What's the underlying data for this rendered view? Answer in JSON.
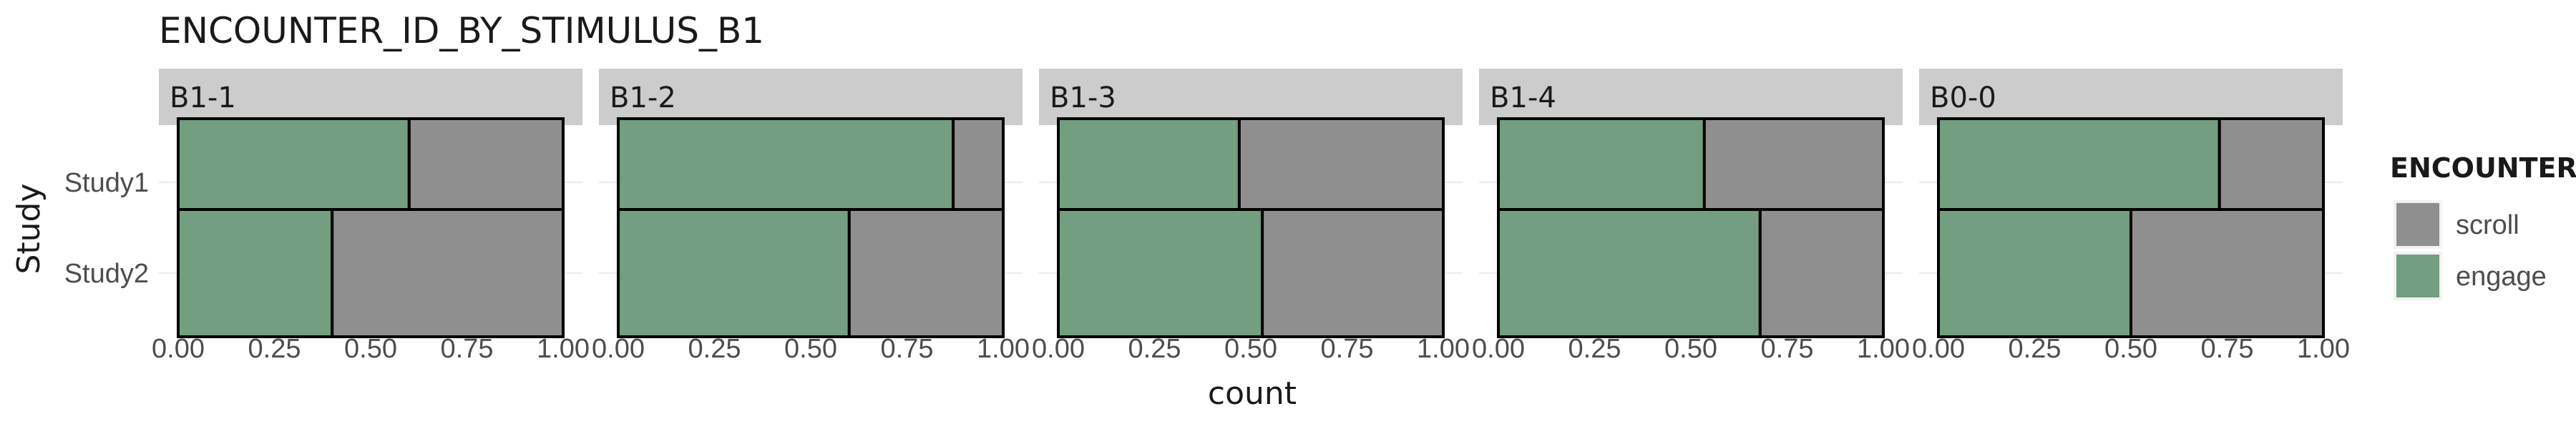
{
  "chart_data": {
    "type": "bar",
    "orientation": "horizontal",
    "stacked": true,
    "title": "ENCOUNTER_ID_BY_STIMULUS_B1",
    "xlabel": "count",
    "ylabel": "Study",
    "xlim": [
      0,
      1
    ],
    "x_ticks": [
      "0.00",
      "0.25",
      "0.50",
      "0.75",
      "1.00"
    ],
    "categories": [
      "Study1",
      "Study2"
    ],
    "legend": {
      "title": "ENCOUNTER",
      "position": "right",
      "entries": [
        {
          "label": "scroll",
          "color": "#8f8f8f"
        },
        {
          "label": "engage",
          "color": "#739e7f"
        }
      ]
    },
    "panels": [
      {
        "label": "B1-1",
        "engage": [
          0.6,
          0.4
        ],
        "scroll": [
          0.4,
          0.6
        ]
      },
      {
        "label": "B1-2",
        "engage": [
          0.87,
          0.6
        ],
        "scroll": [
          0.13,
          0.4
        ]
      },
      {
        "label": "B1-3",
        "engage": [
          0.47,
          0.53
        ],
        "scroll": [
          0.53,
          0.47
        ]
      },
      {
        "label": "B1-4",
        "engage": [
          0.535,
          0.68
        ],
        "scroll": [
          0.465,
          0.32
        ]
      },
      {
        "label": "B0-0",
        "engage": [
          0.73,
          0.5
        ],
        "scroll": [
          0.27,
          0.5
        ]
      }
    ],
    "grid": true
  }
}
